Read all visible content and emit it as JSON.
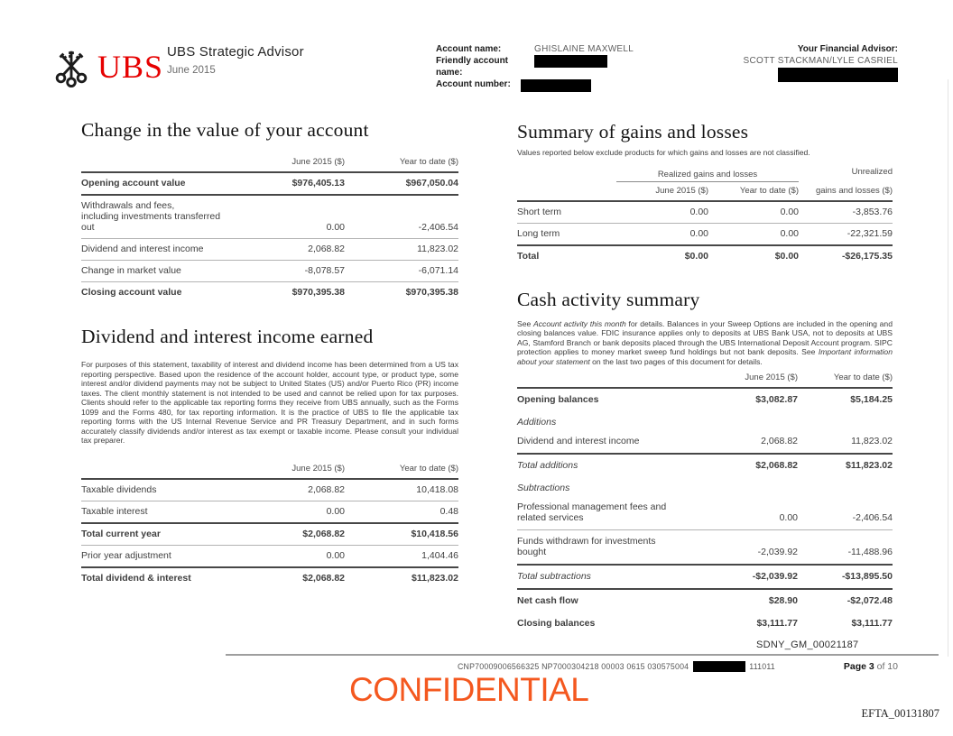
{
  "colors": {
    "ubs_red": "#e60000",
    "confidential_orange": "#f4581f"
  },
  "header": {
    "logo_word": "UBS",
    "product": "UBS Strategic Advisor",
    "period": "June 2015",
    "account_name_label": "Account name:",
    "account_name_value": "GHISLAINE MAXWELL",
    "friendly_label": "Friendly account name:",
    "account_number_label": "Account number:",
    "advisor_label": "Your Financial Advisor:",
    "advisor_value": "SCOTT STACKMAN/LYLE CASRIEL"
  },
  "change": {
    "title": "Change in the value of your account",
    "col_june": "June 2015 ($)",
    "col_ytd": "Year to date ($)",
    "rows": [
      {
        "label": "Opening account value",
        "june": "$976,405.13",
        "ytd": "$967,050.04",
        "ls": "b",
        "vs": "b",
        "bb": "h"
      },
      {
        "label": "Withdrawals and fees,\nincluding investments transferred\nout",
        "june": "0.00",
        "ytd": "-2,406.54",
        "ls": "n",
        "vs": "n",
        "bb": "l"
      },
      {
        "label": "Dividend and interest income",
        "june": "2,068.82",
        "ytd": "11,823.02",
        "ls": "n",
        "vs": "n",
        "bb": "l"
      },
      {
        "label": "Change in market value",
        "june": "-8,078.57",
        "ytd": "-6,071.14",
        "ls": "n",
        "vs": "n",
        "bb": "l"
      },
      {
        "label": "Closing account value",
        "june": "$970,395.38",
        "ytd": "$970,395.38",
        "ls": "b",
        "vs": "b",
        "bb": "n"
      }
    ]
  },
  "dividend": {
    "title": "Dividend and interest income earned",
    "paragraph": "For purposes of this statement, taxability of interest and dividend income has been determined from a US tax reporting perspective. Based upon the residence of the account holder, account type, or product type, some interest and/or dividend payments may not be subject to United States (US) and/or Puerto Rico (PR) income taxes. The client monthly statement is not intended to be used and cannot be relied upon for tax purposes. Clients should refer to the applicable tax reporting forms they receive from UBS annually, such as the Forms 1099 and the Forms 480, for tax reporting information. It is the practice of UBS to file the applicable tax reporting forms with the US Internal Revenue Service and PR Treasury Department, and in such forms accurately classify dividends and/or interest as tax exempt or taxable income. Please consult your individual tax preparer.",
    "col_june": "June 2015 ($)",
    "col_ytd": "Year to date ($)",
    "rows": [
      {
        "label": "Taxable dividends",
        "june": "2,068.82",
        "ytd": "10,418.08",
        "ls": "n",
        "vs": "n",
        "bb": "l"
      },
      {
        "label": "Taxable interest",
        "june": "0.00",
        "ytd": "0.48",
        "ls": "n",
        "vs": "n",
        "bb": "h"
      },
      {
        "label": "Total current year",
        "june": "$2,068.82",
        "ytd": "$10,418.56",
        "ls": "b",
        "vs": "b",
        "bb": "l"
      },
      {
        "label": "Prior year adjustment",
        "june": "0.00",
        "ytd": "1,404.46",
        "ls": "n",
        "vs": "n",
        "bb": "h"
      },
      {
        "label": "Total dividend & interest",
        "june": "$2,068.82",
        "ytd": "$11,823.02",
        "ls": "b",
        "vs": "b",
        "bb": "n"
      }
    ]
  },
  "gains": {
    "title": "Summary of gains and losses",
    "subtitle": "Values reported below exclude products for which gains and losses are not classified.",
    "group_header": "Realized gains and losses",
    "unrealized_line1": "Unrealized",
    "col_june": "June 2015 ($)",
    "col_ytd": "Year to date ($)",
    "col_unrealized": "gains and losses ($)",
    "rows": [
      {
        "label": "Short term",
        "june": "0.00",
        "ytd": "0.00",
        "unreal": "-3,853.76",
        "ls": "n",
        "vs": "n",
        "bb": "l"
      },
      {
        "label": "Long term",
        "june": "0.00",
        "ytd": "0.00",
        "unreal": "-22,321.59",
        "ls": "n",
        "vs": "n",
        "bb": "h"
      },
      {
        "label": "Total",
        "june": "$0.00",
        "ytd": "$0.00",
        "unreal": "-$26,175.35",
        "ls": "b",
        "vs": "b",
        "bb": "n"
      }
    ]
  },
  "cash": {
    "title": "Cash activity summary",
    "paragraph_segments": [
      {
        "t": "See "
      },
      {
        "t": "Account activity this month",
        "i": true
      },
      {
        "t": " for details. Balances in your Sweep Options are included in the opening and closing balances value. FDIC insurance applies only to deposits at UBS Bank USA, not to deposits at UBS AG, Stamford Branch or bank deposits placed through the UBS International Deposit Account program.  SIPC protection applies to money market sweep fund holdings but not bank deposits. See "
      },
      {
        "t": "Important information about your statement",
        "i": true
      },
      {
        "t": " on the last two pages of this document for details."
      }
    ],
    "col_june": "June 2015 ($)",
    "col_ytd": "Year to date ($)",
    "rows": [
      {
        "label": "Opening balances",
        "june": "$3,082.87",
        "ytd": "$5,184.25",
        "ls": "b",
        "vs": "b",
        "bb": "n"
      },
      {
        "label": "Additions",
        "june": "",
        "ytd": "",
        "ls": "i",
        "vs": "n",
        "bb": "n",
        "sect": true
      },
      {
        "label": "Dividend and interest income",
        "june": "2,068.82",
        "ytd": "11,823.02",
        "ls": "n",
        "vs": "n",
        "bb": "h"
      },
      {
        "label": "Total additions",
        "june": "$2,068.82",
        "ytd": "$11,823.02",
        "ls": "ib",
        "vs": "b",
        "bb": "n"
      },
      {
        "label": "Subtractions",
        "june": "",
        "ytd": "",
        "ls": "i",
        "vs": "n",
        "bb": "n",
        "sect": true
      },
      {
        "label": "Professional management fees and\nrelated services",
        "june": "0.00",
        "ytd": "-2,406.54",
        "ls": "n",
        "vs": "n",
        "bb": "l"
      },
      {
        "label": "Funds withdrawn for investments\nbought",
        "june": "-2,039.92",
        "ytd": "-11,488.96",
        "ls": "n",
        "vs": "n",
        "bb": "h"
      },
      {
        "label": "Total subtractions",
        "june": "-$2,039.92",
        "ytd": "-$13,895.50",
        "ls": "ib",
        "vs": "b",
        "bb": "h"
      },
      {
        "label": "Net cash flow",
        "june": "$28.90",
        "ytd": "-$2,072.48",
        "ls": "b",
        "vs": "b",
        "bb": "n"
      },
      {
        "label": "Closing balances",
        "june": "$3,111.77",
        "ytd": "$3,111.77",
        "ls": "b",
        "vs": "b",
        "bb": "n"
      }
    ]
  },
  "footer": {
    "sdny": "SDNY_GM_00021187",
    "code_left": "CNP70009006566325 NP7000304218 00003 0615 030575004",
    "code_right": "111011",
    "page_bold": "Page 3",
    "page_rest": " of 10",
    "confidential": "CONFIDENTIAL",
    "bates": "EFTA_00131807"
  }
}
